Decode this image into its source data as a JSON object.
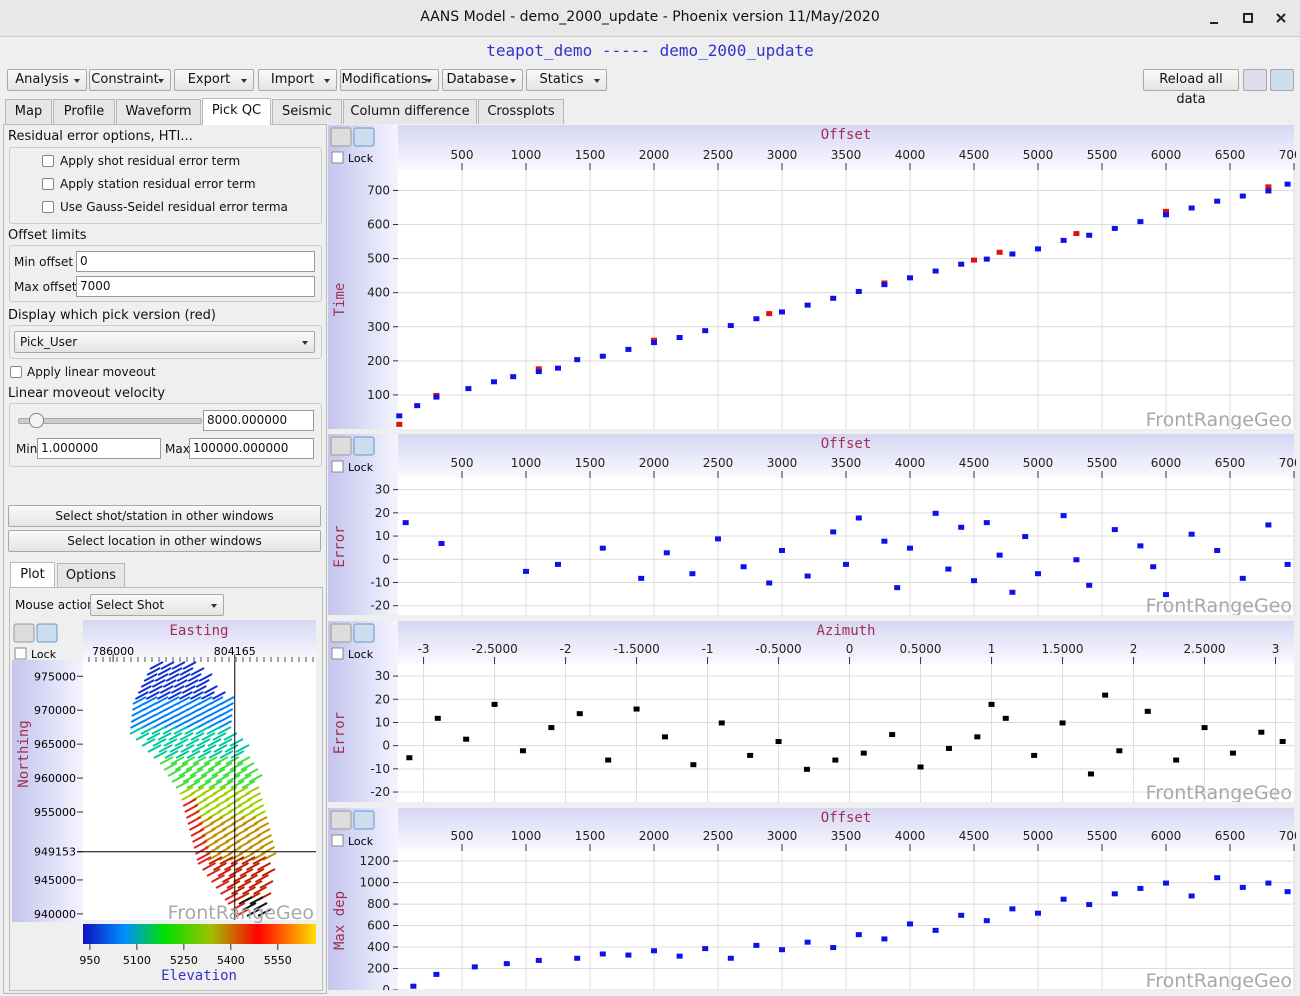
{
  "window": {
    "title": "AANS Model - demo_2000_update - Phoenix version 11/May/2020"
  },
  "header": "teapot_demo ----- demo_2000_update",
  "menus": [
    "Analysis",
    "Constraint",
    "Export",
    "Import",
    "Modifications",
    "Database",
    "Statics"
  ],
  "reload": "Reload all data",
  "tabs": [
    "Map",
    "Profile",
    "Waveform",
    "Pick QC",
    "Seismic",
    "Column difference",
    "Crossplots"
  ],
  "panel": {
    "residual_title": "Residual error options, HTI...",
    "checkboxes": [
      "Apply shot residual error term",
      "Apply station residual error term",
      "Use Gauss-Seidel residual error terma"
    ],
    "offset_title": "Offset limits",
    "min_offset_label": "Min offset",
    "min_offset": "0",
    "max_offset_label": "Max offset",
    "max_offset": "7000",
    "pick_title": "Display which pick version (red)",
    "pick": "Pick_User",
    "moveout": "Apply linear moveout",
    "velocity_title": "Linear moveout velocity",
    "velocity": "8000.000000",
    "min_label": "Min",
    "min": "1.000000",
    "max_label": "Max",
    "max": "100000.000000",
    "buttons": [
      "Select shot/station in other windows",
      "Select location in other windows"
    ],
    "subtabs": [
      "Plot",
      "Options"
    ],
    "mouse_label": "Mouse action",
    "mouse": "Select Shot"
  },
  "map": {
    "x_label": "Easting",
    "y_label": "Northing",
    "lock": "Lock",
    "watermark": "FrontRangeGeo",
    "xlim": [
      781500,
      816300
    ],
    "ylim": [
      939100,
      977100
    ],
    "xticks": [
      786000,
      804165
    ],
    "yticks": [
      975000,
      970000,
      965000,
      960000,
      955000,
      949153,
      945000,
      940000
    ],
    "cursor": [
      804165,
      949153
    ],
    "colorbar": {
      "label": "Elevation",
      "clim": [
        4928,
        5672
      ],
      "ticks": [
        {
          "value": 4950,
          "label": "950"
        },
        5100,
        5250,
        5400,
        5550
      ]
    }
  },
  "chart_data": [
    {
      "type": "scatter",
      "x_label": "Offset",
      "y_label": "Time",
      "lock": "Lock",
      "watermark": "FrontRangeGeo",
      "grid": true,
      "xlim": [
        0,
        7000
      ],
      "ylim": [
        0,
        760
      ],
      "xticks": [
        500,
        1000,
        1500,
        2000,
        2500,
        3000,
        3500,
        4000,
        4500,
        5000,
        5500,
        6000,
        6500,
        7000
      ],
      "yticks": [
        100,
        200,
        300,
        400,
        500,
        600,
        700
      ],
      "series": [
        {
          "color": "#e01010",
          "x": [
            10,
            300,
            1100,
            2000,
            2900,
            3800,
            4500,
            4700,
            5300,
            6000,
            6800
          ],
          "values": [
            15,
            100,
            178,
            262,
            340,
            430,
            497,
            520,
            575,
            640,
            712
          ]
        },
        {
          "color": "#1010e8",
          "x": [
            10,
            150,
            300,
            550,
            750,
            900,
            1100,
            1250,
            1400,
            1600,
            1800,
            2000,
            2200,
            2400,
            2600,
            2800,
            3000,
            3200,
            3400,
            3600,
            3800,
            4000,
            4200,
            4400,
            4600,
            4800,
            5000,
            5200,
            5400,
            5600,
            5800,
            6000,
            6200,
            6400,
            6600,
            6800,
            6950
          ],
          "values": [
            40,
            70,
            95,
            120,
            140,
            155,
            170,
            180,
            205,
            215,
            235,
            255,
            270,
            290,
            305,
            325,
            345,
            365,
            385,
            405,
            425,
            445,
            465,
            485,
            500,
            515,
            530,
            555,
            570,
            590,
            610,
            630,
            650,
            670,
            685,
            700,
            720
          ]
        }
      ]
    },
    {
      "type": "scatter",
      "x_label": "Offset",
      "y_label": "Error",
      "lock": "Lock",
      "watermark": "FrontRangeGeo",
      "grid": true,
      "xlim": [
        0,
        7000
      ],
      "ylim": [
        -24,
        35
      ],
      "xticks": [
        500,
        1000,
        1500,
        2000,
        2500,
        3000,
        3500,
        4000,
        4500,
        5000,
        5500,
        6000,
        6500,
        7000
      ],
      "yticks": [
        30,
        20,
        10,
        0,
        -10,
        -20
      ],
      "series": [
        {
          "color": "#1010e8",
          "x": [
            60,
            340,
            1000,
            1250,
            1600,
            1900,
            2100,
            2300,
            2500,
            2700,
            2900,
            3000,
            3200,
            3400,
            3500,
            3600,
            3800,
            3900,
            4000,
            4200,
            4300,
            4400,
            4500,
            4600,
            4700,
            4800,
            4900,
            5000,
            5200,
            5300,
            5400,
            5600,
            5800,
            5900,
            6000,
            6200,
            6400,
            6600,
            6800,
            6950
          ],
          "values": [
            16,
            7,
            -5,
            -2,
            5,
            -8,
            3,
            -6,
            9,
            -3,
            -10,
            4,
            -7,
            12,
            -2,
            18,
            8,
            -12,
            5,
            20,
            -4,
            14,
            -9,
            16,
            2,
            -14,
            10,
            -6,
            19,
            0,
            -11,
            13,
            6,
            -3,
            -15,
            11,
            4,
            -8,
            15,
            -2
          ]
        }
      ]
    },
    {
      "type": "scatter",
      "x_label": "Azimuth",
      "y_label": "Error",
      "lock": "Lock",
      "watermark": "FrontRangeGeo",
      "grid": true,
      "xlim": [
        -3.18,
        3.13
      ],
      "ylim": [
        -24.3,
        35.2
      ],
      "xticks": [
        -3,
        {
          "value": -2.5,
          "label": "-2.5000"
        },
        -2,
        {
          "value": -1.5,
          "label": "-1.5000"
        },
        -1,
        {
          "value": -0.5,
          "label": "-0.5000"
        },
        0,
        {
          "value": 0.5,
          "label": "0.5000"
        },
        1,
        {
          "value": 1.5,
          "label": "1.5000"
        },
        2,
        {
          "value": 2.5,
          "label": "2.5000"
        },
        3
      ],
      "yticks": [
        30,
        20,
        10,
        0,
        -10,
        -20
      ],
      "series": [
        {
          "color": "#000000",
          "x": [
            -3.1,
            -2.9,
            -2.7,
            -2.5,
            -2.3,
            -2.1,
            -1.9,
            -1.7,
            -1.5,
            -1.3,
            -1.1,
            -0.9,
            -0.7,
            -0.5,
            -0.3,
            -0.1,
            0.1,
            0.3,
            0.5,
            0.7,
            0.9,
            1.0,
            1.1,
            1.3,
            1.5,
            1.7,
            1.8,
            1.9,
            2.1,
            2.3,
            2.5,
            2.7,
            2.9,
            3.05
          ],
          "values": [
            -5,
            12,
            3,
            18,
            -2,
            8,
            14,
            -6,
            16,
            4,
            -8,
            10,
            -4,
            2,
            -10,
            -6,
            -3,
            5,
            -9,
            -1,
            4,
            18,
            12,
            -4,
            10,
            -12,
            22,
            -2,
            15,
            -6,
            8,
            -3,
            6,
            2
          ]
        }
      ]
    },
    {
      "type": "scatter",
      "x_label": "Offset",
      "y_label": "Max dep",
      "lock": "Lock",
      "watermark": "FrontRangeGeo",
      "grid": true,
      "xlim": [
        0,
        7000
      ],
      "ylim": [
        0,
        1294
      ],
      "xticks": [
        500,
        1000,
        1500,
        2000,
        2500,
        3000,
        3500,
        4000,
        4500,
        5000,
        5500,
        6000,
        6500,
        7000
      ],
      "yticks": [
        1200,
        1000,
        800,
        600,
        400,
        200,
        0
      ],
      "series": [
        {
          "color": "#1010e8",
          "x": [
            120,
            300,
            600,
            850,
            1100,
            1400,
            1600,
            1800,
            2000,
            2200,
            2400,
            2600,
            2800,
            3000,
            3200,
            3400,
            3600,
            3800,
            4000,
            4200,
            4400,
            4600,
            4800,
            5000,
            5200,
            5400,
            5600,
            5800,
            6000,
            6200,
            6400,
            6600,
            6800,
            6950
          ],
          "values": [
            40,
            150,
            220,
            250,
            280,
            300,
            340,
            330,
            370,
            320,
            390,
            300,
            420,
            380,
            450,
            400,
            520,
            480,
            620,
            560,
            700,
            650,
            760,
            720,
            850,
            800,
            900,
            950,
            1000,
            880,
            1050,
            960,
            1000,
            920
          ]
        }
      ]
    }
  ]
}
